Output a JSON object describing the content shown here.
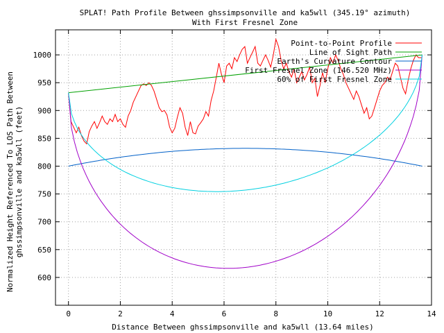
{
  "chart_data": {
    "type": "line",
    "title_line1": "SPLAT! Path Profile Between ghssimpsonville and ka5wll (345.19° azimuth)",
    "title_line2": "With First Fresnel Zone",
    "xlabel": "Distance Between ghssimpsonville and ka5wll (13.64 miles)",
    "ylabel_line1": "Normalized Height Referenced To LOS Path Between",
    "ylabel_line2": "ghssimpsonville and ka5wll (feet)",
    "xlim": [
      -0.5,
      14
    ],
    "ylim": [
      550,
      1045
    ],
    "x_ticks": [
      0,
      2,
      4,
      6,
      8,
      10,
      12,
      14
    ],
    "y_ticks": [
      600,
      650,
      700,
      750,
      800,
      850,
      900,
      950,
      1000
    ],
    "grid": true,
    "legend_position": "top-right",
    "series": [
      {
        "name": "Point-to-Point Profile",
        "color": "#ff0000",
        "points": [
          [
            0,
            930
          ],
          [
            0.1,
            880
          ],
          [
            0.2,
            870
          ],
          [
            0.3,
            860
          ],
          [
            0.4,
            870
          ],
          [
            0.5,
            855
          ],
          [
            0.6,
            845
          ],
          [
            0.7,
            840
          ],
          [
            0.8,
            862
          ],
          [
            0.9,
            872
          ],
          [
            1.0,
            880
          ],
          [
            1.1,
            868
          ],
          [
            1.2,
            878
          ],
          [
            1.3,
            890
          ],
          [
            1.4,
            880
          ],
          [
            1.5,
            875
          ],
          [
            1.6,
            885
          ],
          [
            1.7,
            880
          ],
          [
            1.8,
            893
          ],
          [
            1.9,
            880
          ],
          [
            2.0,
            885
          ],
          [
            2.1,
            875
          ],
          [
            2.2,
            870
          ],
          [
            2.3,
            890
          ],
          [
            2.4,
            900
          ],
          [
            2.5,
            915
          ],
          [
            2.6,
            925
          ],
          [
            2.7,
            935
          ],
          [
            2.8,
            945
          ],
          [
            2.9,
            948
          ],
          [
            3.0,
            945
          ],
          [
            3.1,
            950
          ],
          [
            3.2,
            945
          ],
          [
            3.3,
            935
          ],
          [
            3.4,
            920
          ],
          [
            3.5,
            905
          ],
          [
            3.6,
            898
          ],
          [
            3.7,
            900
          ],
          [
            3.8,
            892
          ],
          [
            3.9,
            870
          ],
          [
            4.0,
            860
          ],
          [
            4.1,
            868
          ],
          [
            4.2,
            888
          ],
          [
            4.3,
            905
          ],
          [
            4.4,
            895
          ],
          [
            4.5,
            870
          ],
          [
            4.6,
            855
          ],
          [
            4.7,
            880
          ],
          [
            4.8,
            860
          ],
          [
            4.9,
            858
          ],
          [
            5.0,
            872
          ],
          [
            5.1,
            878
          ],
          [
            5.2,
            885
          ],
          [
            5.3,
            898
          ],
          [
            5.4,
            890
          ],
          [
            5.5,
            918
          ],
          [
            5.6,
            935
          ],
          [
            5.7,
            960
          ],
          [
            5.8,
            985
          ],
          [
            5.9,
            965
          ],
          [
            6.0,
            950
          ],
          [
            6.1,
            980
          ],
          [
            6.2,
            985
          ],
          [
            6.3,
            975
          ],
          [
            6.4,
            995
          ],
          [
            6.5,
            988
          ],
          [
            6.6,
            1000
          ],
          [
            6.7,
            1010
          ],
          [
            6.8,
            1015
          ],
          [
            6.9,
            985
          ],
          [
            7.0,
            995
          ],
          [
            7.1,
            1005
          ],
          [
            7.2,
            1015
          ],
          [
            7.3,
            985
          ],
          [
            7.4,
            980
          ],
          [
            7.5,
            990
          ],
          [
            7.6,
            1000
          ],
          [
            7.7,
            990
          ],
          [
            7.8,
            978
          ],
          [
            7.9,
            1000
          ],
          [
            8.0,
            1028
          ],
          [
            8.1,
            1015
          ],
          [
            8.2,
            990
          ],
          [
            8.3,
            975
          ],
          [
            8.4,
            985
          ],
          [
            8.5,
            970
          ],
          [
            8.6,
            960
          ],
          [
            8.7,
            975
          ],
          [
            8.8,
            950
          ],
          [
            8.9,
            960
          ],
          [
            9.0,
            970
          ],
          [
            9.1,
            955
          ],
          [
            9.2,
            965
          ],
          [
            9.3,
            978
          ],
          [
            9.4,
            950
          ],
          [
            9.5,
            958
          ],
          [
            9.6,
            925
          ],
          [
            9.7,
            945
          ],
          [
            9.8,
            968
          ],
          [
            9.9,
            950
          ],
          [
            10.0,
            975
          ],
          [
            10.1,
            995
          ],
          [
            10.2,
            985
          ],
          [
            10.3,
            1000
          ],
          [
            10.4,
            990
          ],
          [
            10.5,
            975
          ],
          [
            10.6,
            965
          ],
          [
            10.7,
            950
          ],
          [
            10.8,
            940
          ],
          [
            10.9,
            930
          ],
          [
            11.0,
            920
          ],
          [
            11.1,
            935
          ],
          [
            11.2,
            925
          ],
          [
            11.3,
            910
          ],
          [
            11.4,
            895
          ],
          [
            11.5,
            905
          ],
          [
            11.6,
            885
          ],
          [
            11.7,
            890
          ],
          [
            11.8,
            905
          ],
          [
            11.9,
            920
          ],
          [
            12.0,
            935
          ],
          [
            12.1,
            945
          ],
          [
            12.2,
            950
          ],
          [
            12.3,
            960
          ],
          [
            12.4,
            955
          ],
          [
            12.5,
            970
          ],
          [
            12.6,
            985
          ],
          [
            12.7,
            980
          ],
          [
            12.8,
            960
          ],
          [
            12.9,
            940
          ],
          [
            13.0,
            930
          ],
          [
            13.1,
            955
          ],
          [
            13.2,
            975
          ],
          [
            13.3,
            990
          ],
          [
            13.4,
            1000
          ],
          [
            13.5,
            995
          ],
          [
            13.64,
            995
          ]
        ]
      },
      {
        "name": "Line of Sight Path",
        "color": "#00a000",
        "points": [
          [
            0,
            932
          ],
          [
            13.64,
            1000
          ]
        ]
      },
      {
        "name": "Earth's Curvature Contour",
        "color": "#0060c8",
        "curve": {
          "x0": 0,
          "x1": 13.64,
          "y_end": 800,
          "y_mid": 832
        }
      },
      {
        "name": "First Fresnel Zone (146.520 MHz)",
        "color": "#a000c8",
        "curve": {
          "x0": 0,
          "x1": 13.64,
          "y_start": 932,
          "y_end": 1000,
          "depth": 348
        }
      },
      {
        "name": "60% of First Fresnel Zone",
        "color": "#00d0e0",
        "curve": {
          "x0": 0,
          "x1": 13.64,
          "y_start": 932,
          "y_end": 1000,
          "depth": 209
        }
      }
    ]
  }
}
